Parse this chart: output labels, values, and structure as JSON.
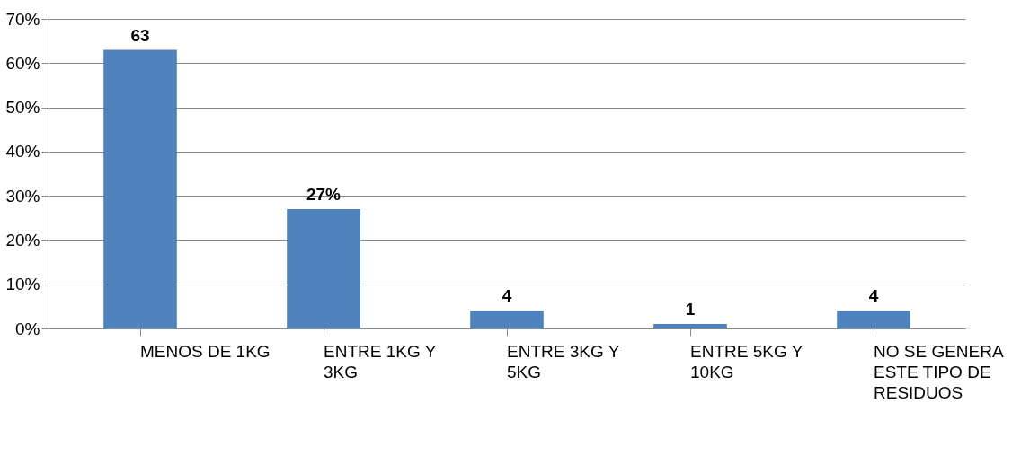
{
  "chart_data": {
    "type": "bar",
    "categories": [
      "MENOS DE 1KG",
      "ENTRE 1KG Y 3KG",
      "ENTRE 3KG Y 5KG",
      "ENTRE 5KG Y 10KG",
      "NO SE GENERA ESTE TIPO DE RESIDUOS"
    ],
    "values": [
      63,
      27,
      4,
      1,
      4
    ],
    "value_labels": [
      "63",
      "27%",
      "4",
      "1",
      "4"
    ],
    "color": "#4f81bd",
    "ylim": [
      0,
      70
    ],
    "yticks": [
      {
        "value": 0,
        "label": "0%"
      },
      {
        "value": 10,
        "label": "10%"
      },
      {
        "value": 20,
        "label": "20%"
      },
      {
        "value": 30,
        "label": "30%"
      },
      {
        "value": 40,
        "label": "40%"
      },
      {
        "value": 50,
        "label": "50%"
      },
      {
        "value": 60,
        "label": "60%"
      },
      {
        "value": 70,
        "label": "70%"
      }
    ],
    "grid": "y"
  }
}
